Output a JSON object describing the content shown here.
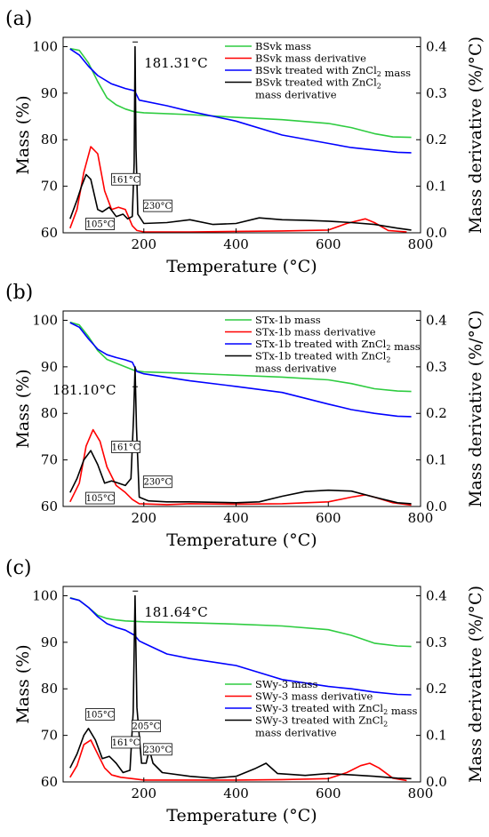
{
  "colors": {
    "mass_untreated": "#2ecc40",
    "mass_derivative": "#ff0000",
    "mass_treated": "#0000ff",
    "derivative_treated": "#000000"
  },
  "chart_data": [
    {
      "type": "line",
      "panel_label": "(a)",
      "xlabel": "Temperature (°C)",
      "ylabel": "Mass (%)",
      "y2label": "Mass derivative (%/°C)",
      "xlim": [
        25,
        800
      ],
      "ylim": [
        60,
        102
      ],
      "y2lim": [
        0,
        0.42
      ],
      "x_ticks": [
        200,
        400,
        600,
        800
      ],
      "y_ticks": [
        60,
        70,
        80,
        90,
        100
      ],
      "y2_ticks": [
        0.0,
        0.1,
        0.2,
        0.3,
        0.4
      ],
      "legend_position": "top-right",
      "peak_annotation": {
        "text": "181.31°C",
        "x": 181.31
      },
      "box_labels": [
        {
          "text": "105°C",
          "x": 105,
          "y": 0.019
        },
        {
          "text": "161°C",
          "x": 161,
          "y": 0.115
        },
        {
          "text": "230°C",
          "x": 230,
          "y": 0.058
        }
      ],
      "series": [
        {
          "name": "BSvk mass",
          "axis": "left",
          "color": "#2ecc40",
          "x": [
            40,
            60,
            80,
            100,
            120,
            140,
            160,
            180,
            200,
            300,
            400,
            500,
            600,
            650,
            700,
            740,
            780
          ],
          "y": [
            99.6,
            99.2,
            96.5,
            92.5,
            89.0,
            87.5,
            86.6,
            86.0,
            85.8,
            85.4,
            84.8,
            84.3,
            83.5,
            82.6,
            81.3,
            80.6,
            80.5
          ]
        },
        {
          "name": "BSvk mass derivative",
          "axis": "right",
          "color": "#ff0000",
          "x": [
            40,
            55,
            70,
            85,
            100,
            115,
            130,
            145,
            160,
            175,
            185,
            200,
            300,
            400,
            500,
            600,
            640,
            680,
            700,
            730,
            770
          ],
          "y": [
            0.01,
            0.05,
            0.13,
            0.185,
            0.17,
            0.09,
            0.05,
            0.055,
            0.05,
            0.015,
            0.005,
            0.002,
            0.002,
            0.003,
            0.004,
            0.006,
            0.02,
            0.03,
            0.022,
            0.005,
            0.002
          ]
        },
        {
          "name": "BSvk treated with ZnCl₂ mass",
          "axis": "left",
          "color": "#0000ff",
          "x": [
            40,
            60,
            80,
            100,
            130,
            160,
            180,
            190,
            250,
            300,
            400,
            500,
            600,
            650,
            700,
            750,
            780
          ],
          "y": [
            99.5,
            98.2,
            95.8,
            93.8,
            92.0,
            91.0,
            90.5,
            88.5,
            87.3,
            86.1,
            84.0,
            81.0,
            79.2,
            78.3,
            77.8,
            77.3,
            77.2
          ]
        },
        {
          "name": "BSvk treated with ZnCl₂ mass derivative",
          "axis": "right",
          "color": "#000000",
          "x": [
            40,
            55,
            65,
            75,
            85,
            100,
            110,
            125,
            140,
            155,
            165,
            175,
            179,
            181,
            183,
            187,
            200,
            250,
            300,
            350,
            400,
            450,
            500,
            550,
            600,
            650,
            700,
            750,
            780
          ],
          "y": [
            0.03,
            0.07,
            0.1,
            0.125,
            0.115,
            0.05,
            0.045,
            0.055,
            0.035,
            0.04,
            0.03,
            0.035,
            0.15,
            0.4,
            0.18,
            0.04,
            0.02,
            0.022,
            0.028,
            0.018,
            0.02,
            0.032,
            0.028,
            0.027,
            0.025,
            0.022,
            0.018,
            0.01,
            0.006
          ]
        }
      ]
    },
    {
      "type": "line",
      "panel_label": "(b)",
      "xlabel": "Temperature (°C)",
      "ylabel": "Mass (%)",
      "y2label": "Mass derivative (%/°C)",
      "xlim": [
        25,
        800
      ],
      "ylim": [
        60,
        102
      ],
      "y2lim": [
        0,
        0.42
      ],
      "x_ticks": [
        200,
        400,
        600,
        800
      ],
      "y_ticks": [
        60,
        70,
        80,
        90,
        100
      ],
      "y2_ticks": [
        0.0,
        0.1,
        0.2,
        0.3,
        0.4
      ],
      "legend_position": "top-right",
      "peak_annotation": {
        "text": "181.10°C",
        "x": 181.1
      },
      "box_labels": [
        {
          "text": "105°C",
          "x": 105,
          "y": 0.018
        },
        {
          "text": "161°C",
          "x": 161,
          "y": 0.128
        },
        {
          "text": "230°C",
          "x": 230,
          "y": 0.053
        }
      ],
      "series": [
        {
          "name": "STx-1b mass",
          "axis": "left",
          "color": "#2ecc40",
          "x": [
            40,
            60,
            80,
            100,
            120,
            140,
            160,
            180,
            200,
            300,
            400,
            500,
            600,
            650,
            700,
            750,
            780
          ],
          "y": [
            99.6,
            99.0,
            96.5,
            93.5,
            91.6,
            90.8,
            90.0,
            89.2,
            88.9,
            88.6,
            88.2,
            87.8,
            87.2,
            86.4,
            85.3,
            84.8,
            84.7
          ]
        },
        {
          "name": "STx-1b mass derivative",
          "axis": "right",
          "color": "#ff0000",
          "x": [
            40,
            60,
            75,
            90,
            105,
            120,
            140,
            160,
            175,
            190,
            250,
            300,
            400,
            500,
            600,
            650,
            680,
            700,
            740,
            780
          ],
          "y": [
            0.01,
            0.05,
            0.13,
            0.165,
            0.14,
            0.085,
            0.045,
            0.03,
            0.015,
            0.006,
            0.004,
            0.006,
            0.005,
            0.006,
            0.01,
            0.02,
            0.025,
            0.02,
            0.008,
            0.003
          ]
        },
        {
          "name": "STx-1b treated with ZnCl₂ mass",
          "axis": "left",
          "color": "#0000ff",
          "x": [
            40,
            60,
            80,
            100,
            120,
            140,
            160,
            175,
            185,
            200,
            300,
            400,
            500,
            600,
            650,
            700,
            750,
            780
          ],
          "y": [
            99.5,
            98.5,
            96.0,
            93.8,
            92.6,
            92.0,
            91.5,
            91.0,
            89.0,
            88.5,
            87.0,
            85.8,
            84.5,
            82.0,
            80.8,
            80.0,
            79.4,
            79.3
          ]
        },
        {
          "name": "STx-1b treated with ZnCl₂ mass derivative",
          "axis": "right",
          "color": "#000000",
          "x": [
            40,
            55,
            70,
            85,
            100,
            115,
            130,
            145,
            160,
            172,
            178,
            181,
            184,
            190,
            210,
            250,
            300,
            400,
            450,
            500,
            550,
            600,
            650,
            700,
            750,
            780
          ],
          "y": [
            0.03,
            0.06,
            0.1,
            0.12,
            0.09,
            0.05,
            0.055,
            0.05,
            0.045,
            0.06,
            0.2,
            0.3,
            0.17,
            0.02,
            0.012,
            0.01,
            0.01,
            0.008,
            0.01,
            0.022,
            0.032,
            0.035,
            0.033,
            0.02,
            0.008,
            0.006
          ]
        }
      ]
    },
    {
      "type": "line",
      "panel_label": "(c)",
      "xlabel": "Temperature (°C)",
      "ylabel": "Mass (%)",
      "y2label": "Mass derivative (%/°C)",
      "xlim": [
        25,
        800
      ],
      "ylim": [
        60,
        102
      ],
      "y2lim": [
        0,
        0.42
      ],
      "x_ticks": [
        200,
        400,
        600,
        800
      ],
      "y_ticks": [
        60,
        70,
        80,
        90,
        100
      ],
      "y2_ticks": [
        0.0,
        0.1,
        0.2,
        0.3,
        0.4
      ],
      "legend_position": "bottom-right",
      "peak_annotation": {
        "text": "181.64°C",
        "x": 181.64
      },
      "box_labels": [
        {
          "text": "105°C",
          "x": 105,
          "y": 0.145
        },
        {
          "text": "161°C",
          "x": 161,
          "y": 0.085
        },
        {
          "text": "205°C",
          "x": 205,
          "y": 0.12
        },
        {
          "text": "230°C",
          "x": 230,
          "y": 0.07
        }
      ],
      "series": [
        {
          "name": "SWy-3 mass",
          "axis": "left",
          "color": "#2ecc40",
          "x": [
            40,
            60,
            80,
            100,
            120,
            140,
            160,
            180,
            200,
            300,
            400,
            500,
            600,
            650,
            700,
            750,
            780
          ],
          "y": [
            99.6,
            99.0,
            97.5,
            95.8,
            95.1,
            94.8,
            94.6,
            94.5,
            94.4,
            94.2,
            93.9,
            93.5,
            92.7,
            91.5,
            89.8,
            89.2,
            89.1
          ]
        },
        {
          "name": "SWy-3 mass derivative",
          "axis": "right",
          "color": "#ff0000",
          "x": [
            40,
            55,
            70,
            85,
            100,
            115,
            130,
            150,
            175,
            200,
            300,
            400,
            500,
            600,
            640,
            670,
            690,
            710,
            740,
            770
          ],
          "y": [
            0.01,
            0.035,
            0.08,
            0.09,
            0.06,
            0.03,
            0.015,
            0.01,
            0.007,
            0.004,
            0.004,
            0.004,
            0.005,
            0.007,
            0.02,
            0.035,
            0.04,
            0.03,
            0.008,
            0.003
          ]
        },
        {
          "name": "SWy-3 treated with ZnCl₂ mass",
          "axis": "left",
          "color": "#0000ff",
          "x": [
            40,
            60,
            80,
            100,
            120,
            140,
            160,
            180,
            190,
            200,
            250,
            300,
            400,
            500,
            600,
            650,
            700,
            750,
            780
          ],
          "y": [
            99.5,
            99.0,
            97.5,
            95.5,
            94.0,
            93.2,
            92.6,
            91.5,
            90.3,
            89.8,
            87.5,
            86.5,
            85.0,
            82.0,
            80.5,
            80.0,
            79.3,
            78.8,
            78.7
          ]
        },
        {
          "name": "SWy-3 treated with ZnCl₂ mass derivative",
          "axis": "right",
          "color": "#000000",
          "x": [
            40,
            55,
            70,
            80,
            95,
            110,
            125,
            140,
            155,
            170,
            177,
            181,
            185,
            195,
            205,
            212,
            220,
            240,
            300,
            350,
            400,
            440,
            465,
            490,
            550,
            600,
            650,
            700,
            750,
            780
          ],
          "y": [
            0.03,
            0.06,
            0.1,
            0.115,
            0.09,
            0.05,
            0.055,
            0.04,
            0.02,
            0.025,
            0.15,
            0.4,
            0.16,
            0.04,
            0.04,
            0.07,
            0.04,
            0.02,
            0.012,
            0.008,
            0.012,
            0.028,
            0.04,
            0.018,
            0.014,
            0.018,
            0.015,
            0.012,
            0.008,
            0.007
          ]
        }
      ]
    }
  ]
}
